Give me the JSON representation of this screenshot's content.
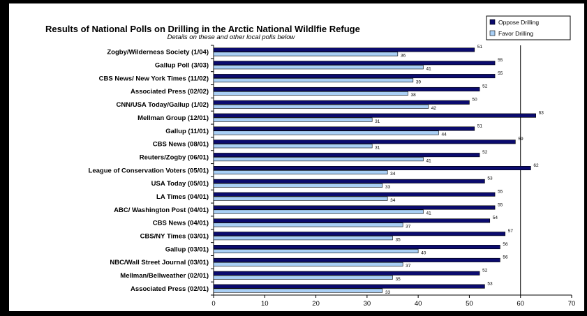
{
  "colors": {
    "oppose": "#0b0b6e",
    "favor": "#a9cff5",
    "frame": "#000000",
    "background": "#ffffff"
  },
  "chart_data": {
    "type": "bar",
    "orientation": "horizontal",
    "title": "Results of National Polls on Drilling in the Arctic National Wildlfie Refuge",
    "subtitle": "Details on these and other local polls below",
    "categories": [
      "Zogby/Wilderness Society (1/04)",
      "Gallup Poll (3/03)",
      "CBS News/ New York Times (11/02)",
      "Associated Press (02/02)",
      "CNN/USA Today/Gallup (1/02)",
      "Mellman Group (12/01)",
      "Gallup (11/01)",
      "CBS News (08/01)",
      "Reuters/Zogby (06/01)",
      "League of Conservation Voters (05/01)",
      "USA Today (05/01)",
      "LA Times (04/01)",
      "ABC/ Washington Post (04/01)",
      "CBS News (04/01)",
      "CBS/NY Times (03/01)",
      "Gallup (03/01)",
      "NBC/Wall Street Journal (03/01)",
      "Mellman/Bellweather (02/01)",
      "Associated Press (02/01)"
    ],
    "series": [
      {
        "name": "Oppose Drilling",
        "values": [
          51,
          55,
          55,
          52,
          50,
          63,
          51,
          59,
          52,
          62,
          53,
          55,
          55,
          54,
          57,
          56,
          56,
          52,
          53
        ]
      },
      {
        "name": "Favor Drilling",
        "values": [
          36,
          41,
          39,
          38,
          42,
          31,
          44,
          31,
          41,
          34,
          33,
          34,
          41,
          37,
          35,
          40,
          37,
          35,
          33
        ]
      }
    ],
    "xlim": [
      0,
      70
    ],
    "xticks": [
      0,
      10,
      20,
      30,
      40,
      50,
      60,
      70
    ],
    "gridlines": [
      60
    ],
    "legend_position": "top-right"
  }
}
